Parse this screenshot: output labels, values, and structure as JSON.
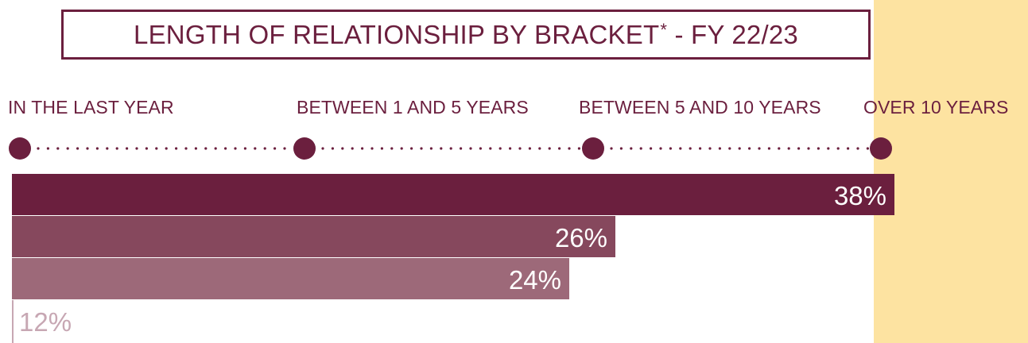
{
  "chart_data": {
    "type": "bar",
    "orientation": "horizontal",
    "title": "LENGTH OF RELATIONSHIP BY BRACKET",
    "title_mark": "*",
    "title_suffix": " - FY 22/23",
    "categories": [
      "IN THE LAST YEAR",
      "BETWEEN 1 AND 5 YEARS",
      "BETWEEN 5 AND 10 YEARS",
      "OVER 10 YEARS"
    ],
    "bars": [
      {
        "value": 38,
        "label": "38%",
        "color": "#6b1f3e"
      },
      {
        "value": 26,
        "label": "26%",
        "color": "#86485d"
      },
      {
        "value": 24,
        "label": "24%",
        "color": "#9d6979"
      },
      {
        "value": 12,
        "label": "12%",
        "color": "#c7a7b3"
      }
    ],
    "xlim": [
      0,
      38
    ],
    "grid": false
  },
  "colors": {
    "primary": "#6b1f3e",
    "highlight": "#fde3a1",
    "background": "#ffffff"
  }
}
